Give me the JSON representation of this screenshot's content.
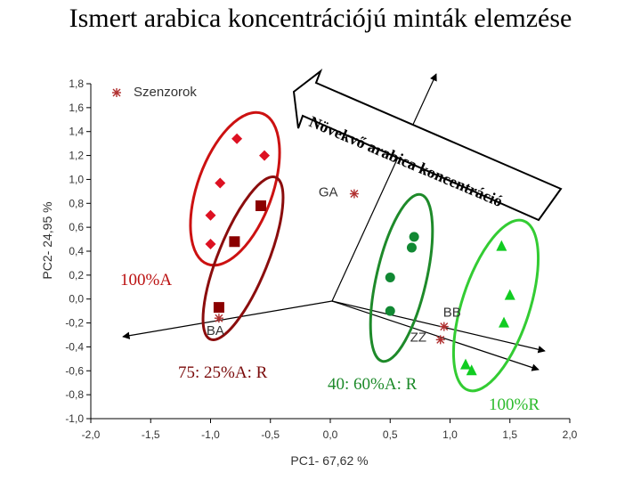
{
  "title": "Ismert arabica koncentrációjú minták elemzése",
  "chart_data": {
    "type": "scatter",
    "title": "Ismert arabica koncentrációjú minták elemzése",
    "xlabel": "PC1- 67,62 %",
    "ylabel": "PC2- 24,95 %",
    "xlim": [
      -2.0,
      2.0
    ],
    "ylim": [
      -1.0,
      1.8
    ],
    "xticks": [
      "-2,0",
      "-1,5",
      "-1,0",
      "-0,5",
      "0,0",
      "0,5",
      "1,0",
      "1,5",
      "2,0"
    ],
    "yticks": [
      "1,8",
      "1,6",
      "1,4",
      "1,2",
      "1,0",
      "0,8",
      "0,6",
      "0,4",
      "0,2",
      "0,0",
      "-0,2",
      "-0,4",
      "-0,6",
      "-0,8",
      "-1,0"
    ],
    "grid": false,
    "legend": {
      "position": "top-left",
      "entries": [
        "Szenzorok"
      ]
    },
    "arrow_label": "Növekvő arabica koncentráció",
    "series": [
      {
        "name": "Szenzorok",
        "marker": "asterisk",
        "color": "#b03030",
        "points": [
          {
            "label": "GA",
            "x": 0.2,
            "y": 0.88
          },
          {
            "label": "BA",
            "x": -0.93,
            "y": -0.16
          },
          {
            "label": "BB",
            "x": 0.95,
            "y": -0.23
          },
          {
            "label": "ZZ",
            "x": 0.92,
            "y": -0.34
          }
        ]
      },
      {
        "marker": "diamond",
        "color": "#dd1122",
        "points": [
          {
            "x": -0.78,
            "y": 1.34
          },
          {
            "x": -0.55,
            "y": 1.2
          },
          {
            "x": -0.92,
            "y": 0.97
          },
          {
            "x": -1.0,
            "y": 0.7
          },
          {
            "x": -1.0,
            "y": 0.46
          }
        ]
      },
      {
        "marker": "square",
        "color": "#8b0000",
        "points": [
          {
            "x": -0.58,
            "y": 0.78
          },
          {
            "x": -0.8,
            "y": 0.48
          },
          {
            "x": -0.93,
            "y": -0.07
          }
        ]
      },
      {
        "marker": "circle",
        "color": "#118833",
        "points": [
          {
            "x": 0.7,
            "y": 0.52
          },
          {
            "x": 0.68,
            "y": 0.43
          },
          {
            "x": 0.5,
            "y": 0.18
          },
          {
            "x": 0.5,
            "y": -0.1
          }
        ]
      },
      {
        "marker": "triangle",
        "color": "#11cc22",
        "points": [
          {
            "x": 1.43,
            "y": 0.44
          },
          {
            "x": 1.5,
            "y": 0.03
          },
          {
            "x": 1.45,
            "y": -0.2
          },
          {
            "x": 1.13,
            "y": -0.55
          },
          {
            "x": 1.18,
            "y": -0.6
          }
        ]
      }
    ],
    "groups": [
      {
        "label": "100%A",
        "color": "#bb1111"
      },
      {
        "label": "75: 25%A: R",
        "color": "#7a0a0a"
      },
      {
        "label": "40: 60%A: R",
        "color": "#1d8a2a"
      },
      {
        "label": "100%R",
        "color": "#2bbb2b"
      }
    ]
  }
}
